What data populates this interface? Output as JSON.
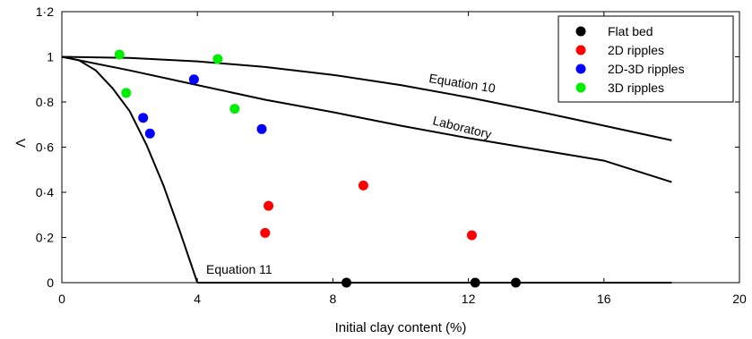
{
  "chart_data": {
    "type": "scatter",
    "xlabel": "Initial clay content (%)",
    "ylabel": "Λ",
    "xlim": [
      0,
      20
    ],
    "ylim": [
      0,
      1.2
    ],
    "xticks": [
      0,
      4,
      8,
      12,
      16,
      20
    ],
    "xtick_labels": [
      "0",
      "4",
      "8",
      "12",
      "16",
      "20"
    ],
    "yticks": [
      0,
      0.2,
      0.4,
      0.6,
      0.8,
      1,
      1.2
    ],
    "ytick_labels": [
      "0",
      "0·2",
      "0·4",
      "0·6",
      "0·8",
      "1",
      "1·2"
    ],
    "grid": false,
    "legend_position": "top-right",
    "series": [
      {
        "name": "Flat bed",
        "color": "#000000",
        "x": [
          8.4,
          12.2,
          13.4
        ],
        "y": [
          0,
          0,
          0
        ]
      },
      {
        "name": "2D ripples",
        "color": "#ff0000",
        "x": [
          6.0,
          6.1,
          8.9,
          12.1
        ],
        "y": [
          0.22,
          0.34,
          0.43,
          0.21
        ]
      },
      {
        "name": "2D-3D ripples",
        "color": "#0000ff",
        "x": [
          2.4,
          2.6,
          3.9,
          5.9
        ],
        "y": [
          0.73,
          0.66,
          0.9,
          0.68
        ]
      },
      {
        "name": "3D ripples",
        "color": "#00ee00",
        "x": [
          1.7,
          1.9,
          4.6,
          5.1
        ],
        "y": [
          1.01,
          0.84,
          0.99,
          0.77
        ]
      }
    ],
    "curves": [
      {
        "label": "Equation 10",
        "x": [
          0,
          2,
          4,
          6,
          8,
          10,
          12,
          14,
          16,
          18
        ],
        "y": [
          1.0,
          0.995,
          0.98,
          0.955,
          0.92,
          0.875,
          0.82,
          0.76,
          0.695,
          0.63
        ]
      },
      {
        "label": "Laboratory",
        "x": [
          0,
          2,
          4,
          6,
          8,
          10,
          12,
          14,
          16,
          18
        ],
        "y": [
          1.0,
          0.94,
          0.875,
          0.81,
          0.755,
          0.695,
          0.64,
          0.59,
          0.54,
          0.445
        ]
      },
      {
        "label": "Equation 11",
        "x": [
          0,
          0.5,
          1,
          1.5,
          2,
          2.5,
          3,
          3.5,
          4
        ],
        "y": [
          1.0,
          0.985,
          0.94,
          0.86,
          0.76,
          0.61,
          0.43,
          0.22,
          0.0
        ]
      },
      {
        "label": "",
        "x": [
          4,
          18
        ],
        "y": [
          0,
          0
        ]
      }
    ]
  }
}
